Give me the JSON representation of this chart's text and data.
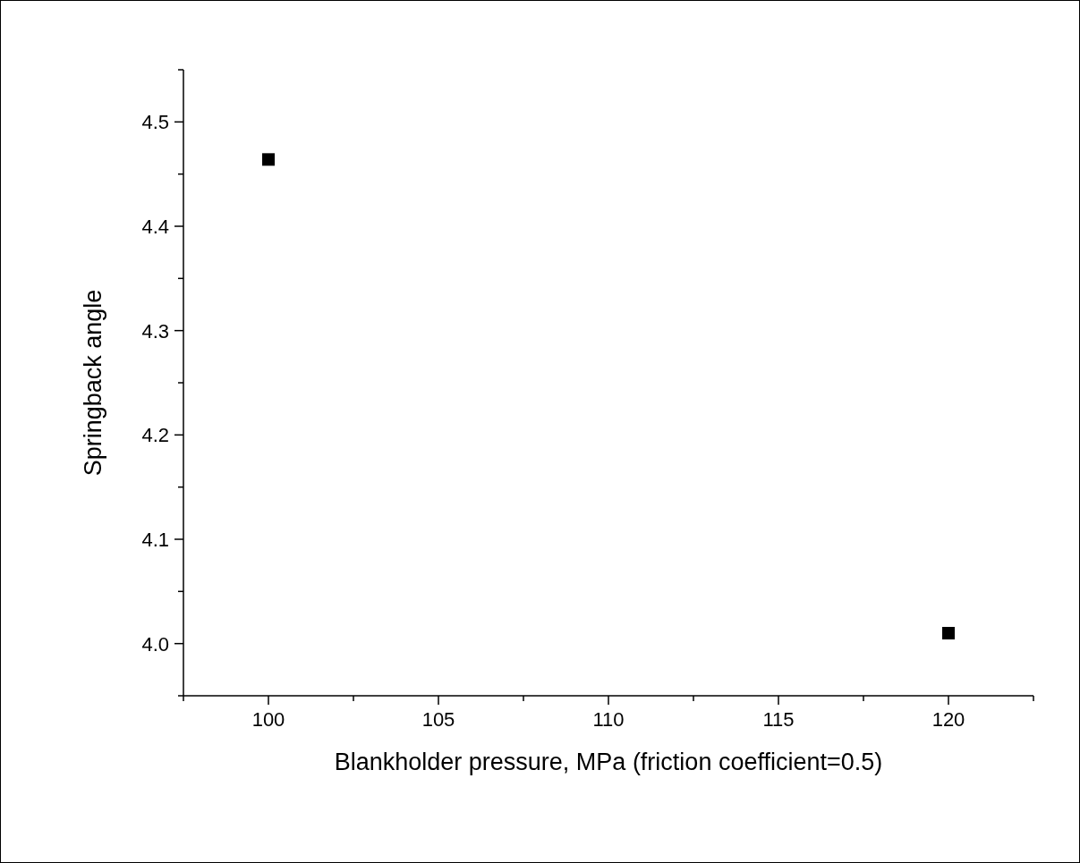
{
  "chart_data": {
    "type": "scatter",
    "xlabel": "Blankholder pressure, MPa (friction coefficient=0.5)",
    "ylabel": "Springback angle",
    "x": [
      100,
      120
    ],
    "series": [
      {
        "color": "#000000",
        "values": [
          4.464,
          4.01
        ]
      }
    ],
    "xlim": [
      97.5,
      122.5
    ],
    "xticks": [
      {
        "value": 97.5,
        "label": null
      },
      100,
      {
        "value": 102.5,
        "label": null
      },
      105,
      {
        "value": 107.5,
        "label": null
      },
      110,
      {
        "value": 112.5,
        "label": null
      },
      115,
      {
        "value": 117.5,
        "label": null
      },
      120,
      {
        "value": 122.5,
        "label": null
      }
    ],
    "ylim": [
      3.95,
      4.55
    ],
    "yticks": [
      {
        "value": 3.95,
        "label": null
      },
      "4.0",
      {
        "value": 4.05,
        "label": null
      },
      4.1,
      {
        "value": 4.15,
        "label": null
      },
      4.2,
      {
        "value": 4.25,
        "label": null
      },
      4.3,
      {
        "value": 4.35,
        "label": null
      },
      4.4,
      {
        "value": 4.45,
        "label": null
      },
      4.5,
      {
        "value": 4.55,
        "label": null
      }
    ],
    "marker": "square",
    "grid": false,
    "legend": false
  }
}
